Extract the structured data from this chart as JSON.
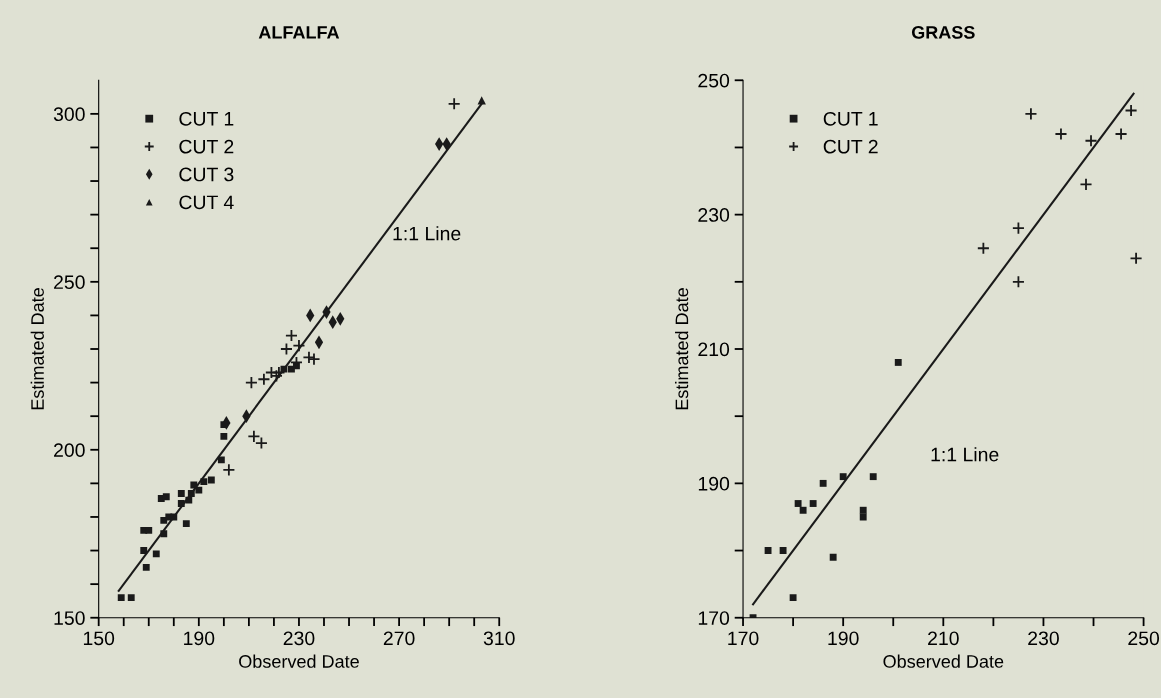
{
  "chart_data": [
    {
      "type": "scatter",
      "title": "ALFALFA",
      "xlabel": "Observed Date",
      "ylabel": "Estimated Date",
      "xlim": [
        150,
        310
      ],
      "ylim": [
        150,
        310
      ],
      "xticks": [
        150,
        {
          "value": 160,
          "label": null
        },
        {
          "value": 170,
          "label": null
        },
        {
          "value": 180,
          "label": null
        },
        190,
        {
          "value": 200,
          "label": null
        },
        {
          "value": 210,
          "label": null
        },
        {
          "value": 220,
          "label": null
        },
        230,
        {
          "value": 240,
          "label": null
        },
        {
          "value": 250,
          "label": null
        },
        {
          "value": 260,
          "label": null
        },
        270,
        {
          "value": 280,
          "label": null
        },
        {
          "value": 290,
          "label": null
        },
        {
          "value": 300,
          "label": null
        },
        310
      ],
      "yticks": [
        150,
        {
          "value": 160,
          "label": null
        },
        {
          "value": 170,
          "label": null
        },
        {
          "value": 180,
          "label": null
        },
        {
          "value": 190,
          "label": null
        },
        200,
        {
          "value": 210,
          "label": null
        },
        {
          "value": 220,
          "label": null
        },
        {
          "value": 230,
          "label": null
        },
        {
          "value": 240,
          "label": null
        },
        250,
        {
          "value": 260,
          "label": null
        },
        {
          "value": 270,
          "label": null
        },
        {
          "value": 280,
          "label": null
        },
        {
          "value": 290,
          "label": null
        },
        300
      ],
      "grid": false,
      "legend": "top left",
      "series": [
        {
          "name": "CUT 1",
          "color": "#1a1a1a",
          "marker": "square",
          "x": [
            159,
            163,
            168,
            170,
            168,
            173,
            169,
            175,
            177,
            176,
            176,
            178,
            180,
            183,
            183,
            185,
            186,
            187,
            188,
            190,
            192,
            195,
            199,
            200,
            200,
            224,
            227,
            229
          ],
          "values": [
            156,
            156,
            176,
            176,
            170,
            169,
            165,
            185.5,
            186,
            175,
            179,
            180,
            180,
            187,
            184,
            178,
            185,
            187,
            189.5,
            188,
            190.5,
            191,
            197,
            204,
            207.5,
            224,
            224,
            225
          ]
        },
        {
          "name": "CUT 2",
          "color": "#1a1a1a",
          "marker": "cross",
          "x": [
            202,
            212,
            215,
            211,
            216,
            219,
            221,
            227,
            225,
            230,
            234,
            236,
            222,
            229,
            292
          ],
          "values": [
            194,
            204,
            202,
            220,
            221,
            223,
            222,
            234,
            230,
            231,
            227.5,
            227,
            223,
            226,
            303
          ]
        },
        {
          "name": "CUT 3",
          "color": "#1a1a1a",
          "marker": "diamond",
          "x": [
            201,
            209,
            234.5,
            241,
            243.5,
            246.5,
            238,
            286,
            289
          ],
          "values": [
            208,
            210,
            240,
            241,
            238,
            239,
            232,
            291,
            291
          ]
        },
        {
          "name": "CUT 4",
          "color": "#1a1a1a",
          "marker": "triangle",
          "x": [
            303
          ],
          "values": [
            304
          ]
        },
        {
          "type": "line",
          "name": "1:1 Line",
          "color": "#1a1a1a",
          "marker": "none",
          "line_style": "solid",
          "x": [
            158,
            303
          ],
          "values": [
            158,
            303
          ]
        }
      ]
    },
    {
      "type": "scatter",
      "title": "GRASS",
      "xlabel": "Observed Date",
      "ylabel": "Estimated Date",
      "xlim": [
        170,
        250
      ],
      "ylim": [
        170,
        250
      ],
      "xticks": [
        170,
        {
          "value": 180,
          "label": null
        },
        190,
        {
          "value": 200,
          "label": null
        },
        210,
        {
          "value": 220,
          "label": null
        },
        230,
        {
          "value": 240,
          "label": null
        },
        250
      ],
      "yticks": [
        170,
        {
          "value": 180,
          "label": null
        },
        190,
        {
          "value": 200,
          "label": null
        },
        210,
        {
          "value": 220,
          "label": null
        },
        230,
        {
          "value": 240,
          "label": null
        },
        250
      ],
      "grid": false,
      "legend": "top left",
      "series": [
        {
          "name": "CUT 1",
          "color": "#1a1a1a",
          "marker": "square",
          "x": [
            172,
            180,
            175,
            178,
            188,
            181,
            182,
            184,
            186,
            190,
            194,
            194,
            196,
            201
          ],
          "values": [
            170,
            173,
            180,
            180,
            179,
            187,
            186,
            187,
            190,
            191,
            186,
            185,
            191,
            208
          ]
        },
        {
          "name": "CUT 2",
          "color": "#1a1a1a",
          "marker": "cross",
          "x": [
            218,
            225,
            225,
            227.5,
            233.5,
            239.5,
            238.5,
            245.5,
            247.5,
            248.5
          ],
          "values": [
            225,
            228,
            220,
            245,
            242,
            241,
            234.5,
            242,
            245.5,
            223.5
          ]
        },
        {
          "type": "line",
          "name": "1:1 Line",
          "color": "#1a1a1a",
          "marker": "none",
          "line_style": "solid",
          "x": [
            172,
            248
          ],
          "values": [
            172,
            248
          ]
        }
      ]
    }
  ]
}
